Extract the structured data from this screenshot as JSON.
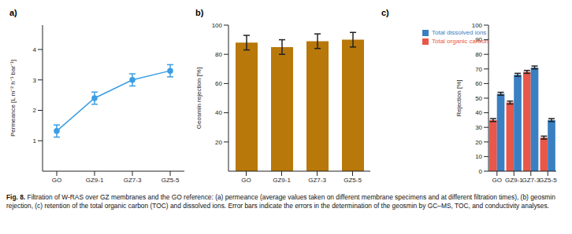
{
  "chart_data": [
    {
      "type": "line",
      "title": "a)",
      "ylabel": "Permeance [L m⁻² h⁻¹ bar⁻¹]",
      "categories": [
        "GO",
        "GZ9-1",
        "GZ7-3",
        "GZ5-5"
      ],
      "values": [
        1.32,
        2.4,
        3.0,
        3.3
      ],
      "errors": [
        0.2,
        0.2,
        0.2,
        0.2
      ],
      "color": "#3a9ee4",
      "marker": "circle",
      "ylim": [
        0,
        4.8
      ],
      "yticks": [
        1,
        2,
        3,
        4
      ],
      "grid": false
    },
    {
      "type": "bar",
      "title": "b)",
      "ylabel": "Geosmin rejection [%]",
      "categories": [
        "GO",
        "GZ9-1",
        "GZ7-3",
        "GZ5-5"
      ],
      "values": [
        88,
        85,
        89,
        90
      ],
      "errors": [
        5,
        5,
        5,
        5
      ],
      "color": "#b8780a",
      "ylim": [
        0,
        100
      ],
      "yticks": [
        20,
        40,
        60,
        80,
        100
      ],
      "grid": false
    },
    {
      "type": "bar",
      "title": "c)",
      "ylabel": "Rejection [%]",
      "categories": [
        "GO",
        "GZ9-1",
        "GZ7-3",
        "GZ5-5"
      ],
      "series": [
        {
          "name": "Total organic carbon",
          "color": "#e8574a",
          "values": [
            35,
            47,
            68,
            23
          ],
          "errors": [
            1,
            1,
            1,
            1
          ]
        },
        {
          "name": "Total dissolved ions",
          "color": "#3a7fc1",
          "values": [
            53,
            66,
            71,
            35
          ],
          "errors": [
            1,
            1,
            1,
            1
          ]
        }
      ],
      "legend": "upper left",
      "ylim": [
        0,
        100
      ],
      "yticks": [
        0,
        10,
        20,
        30,
        40,
        50,
        60,
        70,
        80,
        90,
        100
      ],
      "grid": false
    }
  ],
  "caption": {
    "label": "Fig. 8.",
    "text": "Filtration of W-RAS over GZ membranes and the GO reference: (a) permeance (average values taken on different membrane specimens and at different filtration times), (b) geosmin rejection, (c) retention of the total organic carbon (TOC) and dissolved ions. Error bars indicate the errors in the determination of the geosmin by GC–MS, TOC, and conductivity analyses."
  }
}
